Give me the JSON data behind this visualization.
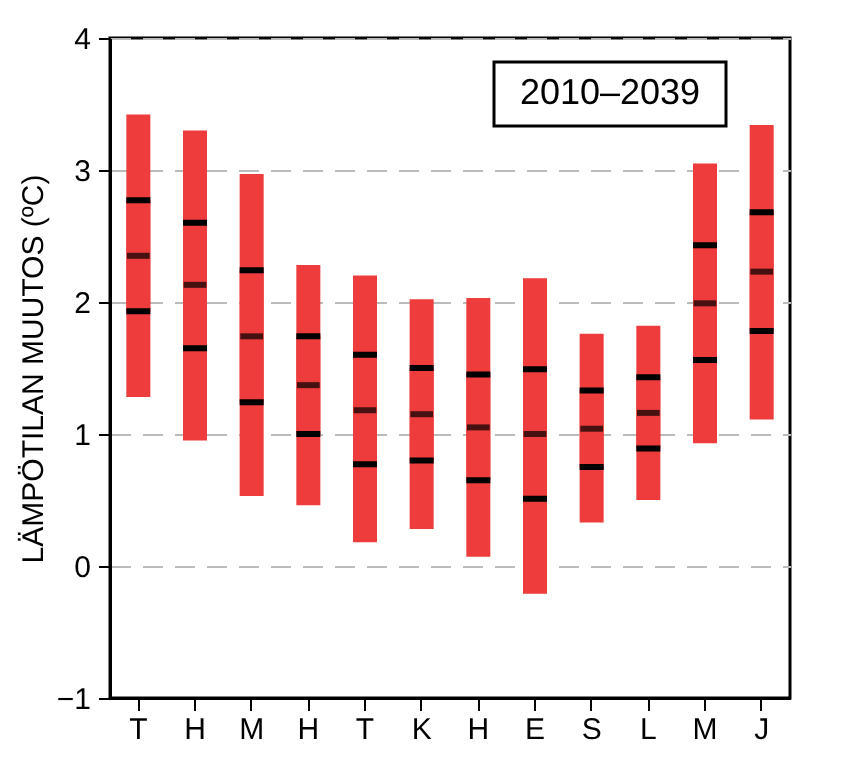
{
  "chart_data": {
    "type": "box",
    "ylabel": "LÄMPÖTILAN MUUTOS (ºC)",
    "annotations": [
      "2010–2039"
    ],
    "categories": [
      "T",
      "H",
      "M",
      "H",
      "T",
      "K",
      "H",
      "E",
      "S",
      "L",
      "M",
      "J"
    ],
    "ylim": [
      -1,
      4
    ],
    "yticks": [
      -1,
      0,
      1,
      2,
      3,
      4
    ],
    "grid": "y",
    "legend": false,
    "series": [
      {
        "color": "#ee3b3b",
        "boxes": [
          {
            "low": 1.28,
            "q1": 1.93,
            "median": 2.35,
            "q3": 2.77,
            "high": 3.42
          },
          {
            "low": 0.95,
            "q1": 1.65,
            "median": 2.13,
            "q3": 2.6,
            "high": 3.3
          },
          {
            "low": 0.53,
            "q1": 1.24,
            "median": 1.74,
            "q3": 2.24,
            "high": 2.97
          },
          {
            "low": 0.46,
            "q1": 1.0,
            "median": 1.37,
            "q3": 1.74,
            "high": 2.28
          },
          {
            "low": 0.18,
            "q1": 0.77,
            "median": 1.18,
            "q3": 1.6,
            "high": 2.2
          },
          {
            "low": 0.28,
            "q1": 0.8,
            "median": 1.15,
            "q3": 1.5,
            "high": 2.02
          },
          {
            "low": 0.07,
            "q1": 0.65,
            "median": 1.05,
            "q3": 1.45,
            "high": 2.03
          },
          {
            "low": -0.21,
            "q1": 0.51,
            "median": 1.0,
            "q3": 1.49,
            "high": 2.18
          },
          {
            "low": 0.33,
            "q1": 0.75,
            "median": 1.04,
            "q3": 1.33,
            "high": 1.76
          },
          {
            "low": 0.5,
            "q1": 0.89,
            "median": 1.16,
            "q3": 1.43,
            "high": 1.82
          },
          {
            "low": 0.93,
            "q1": 1.56,
            "median": 1.99,
            "q3": 2.43,
            "high": 3.05
          },
          {
            "low": 1.11,
            "q1": 1.78,
            "median": 2.23,
            "q3": 2.68,
            "high": 3.34
          }
        ]
      }
    ]
  }
}
